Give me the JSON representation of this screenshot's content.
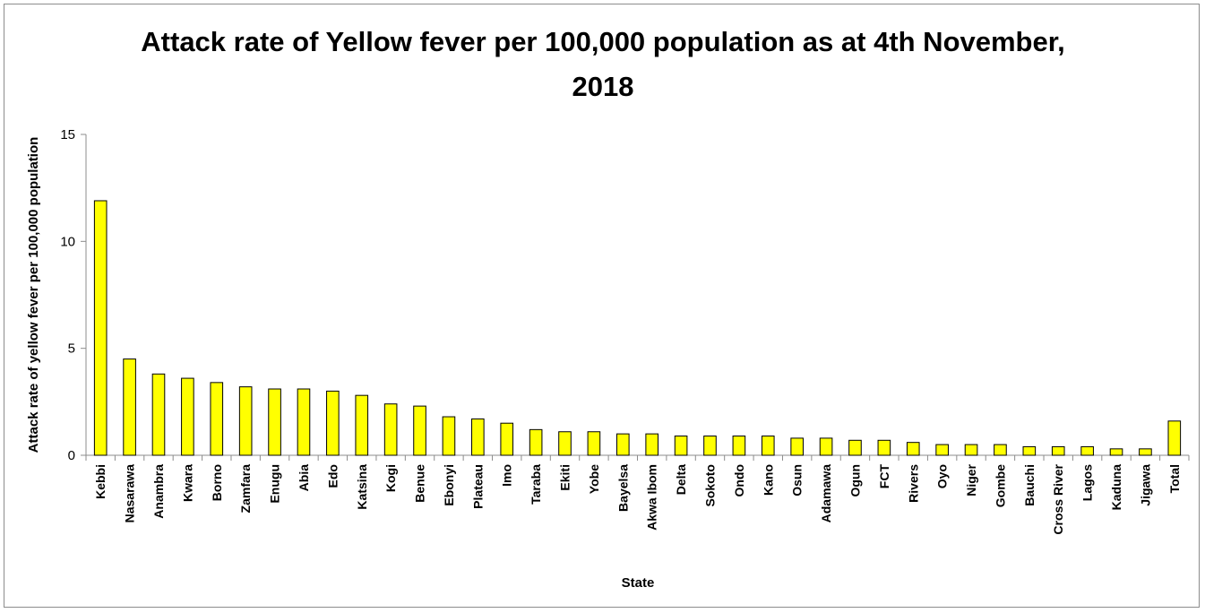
{
  "chart_data": {
    "type": "bar",
    "title_lines": [
      "Attack rate of Yellow fever per 100,000 population as at 4th November,",
      "2018"
    ],
    "xlabel": "State",
    "ylabel": "Attack rate of yellow fever per 100,000 population",
    "ylim": [
      0,
      15
    ],
    "yticks": [
      "0",
      "5",
      "10",
      "15"
    ],
    "categories": [
      "Kebbi",
      "Nasarawa",
      "Anambra",
      "Kwara",
      "Borno",
      "Zamfara",
      "Enugu",
      "Abia",
      "Edo",
      "Katsina",
      "Kogi",
      "Benue",
      "Ebonyi",
      "Plateau",
      "Imo",
      "Taraba",
      "Ekiti",
      "Yobe",
      "Bayelsa",
      "Akwa Ibom",
      "Delta",
      "Sokoto",
      "Ondo",
      "Kano",
      "Osun",
      "Adamawa",
      "Ogun",
      "FCT",
      "Rivers",
      "Oyo",
      "Niger",
      "Gombe",
      "Bauchi",
      "Cross River",
      "Lagos",
      "Kaduna",
      "Jigawa",
      "Total"
    ],
    "values": [
      11.9,
      4.5,
      3.8,
      3.6,
      3.4,
      3.2,
      3.1,
      3.1,
      3.0,
      2.8,
      2.4,
      2.3,
      1.8,
      1.7,
      1.5,
      1.2,
      1.1,
      1.1,
      1.0,
      1.0,
      0.9,
      0.9,
      0.9,
      0.9,
      0.8,
      0.8,
      0.7,
      0.7,
      0.6,
      0.5,
      0.5,
      0.5,
      0.4,
      0.4,
      0.4,
      0.3,
      0.3,
      1.6
    ],
    "bar_color": "#ffff00",
    "bar_border_color": "#000000",
    "grid": false,
    "legend": "none"
  }
}
